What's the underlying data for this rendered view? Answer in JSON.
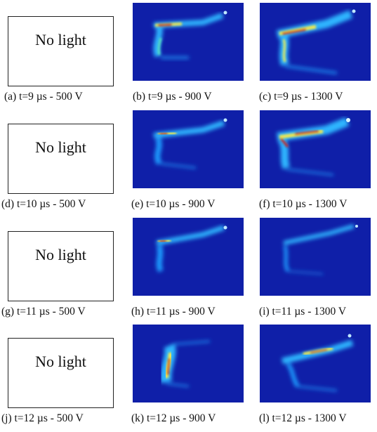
{
  "figure": {
    "rows": [
      {
        "panels": [
          {
            "type": "no-light",
            "label": "No light",
            "caption": "(a) t=9 µs - 500 V"
          },
          {
            "type": "image",
            "caption": "(b) t=9 µs - 900 V",
            "intensity": "medium"
          },
          {
            "type": "image",
            "caption": "(c) t=9 µs - 1300 V",
            "intensity": "high"
          }
        ]
      },
      {
        "panels": [
          {
            "type": "no-light",
            "label": "No light",
            "caption": "(d) t=10 µs - 500 V"
          },
          {
            "type": "image",
            "caption": "(e) t=10 µs - 900 V",
            "intensity": "medium"
          },
          {
            "type": "image",
            "caption": "(f) t=10 µs - 1300 V",
            "intensity": "high"
          }
        ]
      },
      {
        "panels": [
          {
            "type": "no-light",
            "label": "No light",
            "caption": "(g) t=11 µs - 500 V"
          },
          {
            "type": "image",
            "caption": "(h) t=11 µs - 900 V",
            "intensity": "medium"
          },
          {
            "type": "image",
            "caption": "(i) t=11 µs - 1300 V",
            "intensity": "low"
          }
        ]
      },
      {
        "panels": [
          {
            "type": "no-light",
            "label": "No light",
            "caption": "(j) t=12 µs - 500 V"
          },
          {
            "type": "image",
            "caption": "(k) t=12 µs - 900 V",
            "intensity": "high"
          },
          {
            "type": "image",
            "caption": "(l) t=12 µs - 1300 V",
            "intensity": "medium"
          }
        ]
      }
    ],
    "colors": {
      "background_blue": "#0f1fa8",
      "glow_cyan": "#3fd8ff",
      "glow_yellow": "#f5e84a",
      "glow_red": "#d41a14"
    }
  }
}
